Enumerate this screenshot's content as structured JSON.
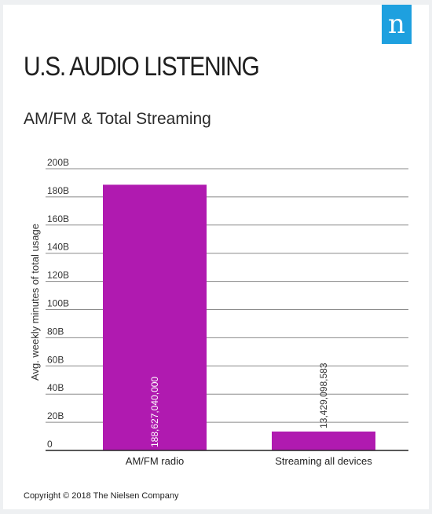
{
  "header": {
    "title": "U.S. AUDIO LISTENING",
    "subtitle": "AM/FM & Total Streaming",
    "logo_letter": "n",
    "logo_color": "#1ea0df"
  },
  "footer": {
    "copyright": "Copyright © 2018 The Nielsen Company"
  },
  "chart_data": {
    "type": "bar",
    "categories": [
      "AM/FM radio",
      "Streaming all devices"
    ],
    "values": [
      188627040000,
      13429098583
    ],
    "data_labels": [
      "188,627,040,000",
      "13,429,098,583"
    ],
    "ylabel": "Avg. weekly minutes of total usage",
    "ylim": [
      0,
      200000000000
    ],
    "yticks": [
      0,
      20000000000,
      40000000000,
      60000000000,
      80000000000,
      100000000000,
      120000000000,
      140000000000,
      160000000000,
      180000000000,
      200000000000
    ],
    "ytick_labels": [
      "0",
      "20B",
      "40B",
      "60B",
      "80B",
      "100B",
      "120B",
      "140B",
      "160B",
      "180B",
      "200B"
    ],
    "bar_color": "#b01ab0",
    "grid": true
  }
}
